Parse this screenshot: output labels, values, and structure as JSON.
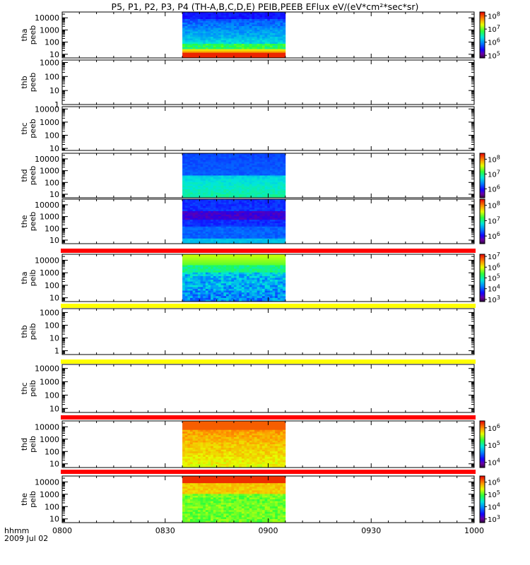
{
  "title": "P5, P1, P2, P3, P4 (TH-A,B,C,D,E) PEIB,PEEB EFlux eV/(eV*cm²*sec*sr)",
  "time_axis": {
    "label": "hhmm",
    "date": "2009 Jul 02",
    "ticks": [
      "0800",
      "0830",
      "0900",
      "0930",
      "1000"
    ]
  },
  "chart_data": {
    "type": "heatmap",
    "x_range_minutes": [
      0,
      120
    ],
    "data_window_minutes": [
      35,
      65
    ],
    "panels": [
      {
        "name": "thaPEEB",
        "probe": "tha",
        "product": "peeb",
        "ylim": [
          5,
          30000
        ],
        "yscale": "log",
        "yticks": [
          "10",
          "100",
          "1000",
          "10000"
        ],
        "has_data": true,
        "palette": "peeb_a",
        "colorbar": {
          "exponents": [
            "5",
            "6",
            "7",
            "8"
          ],
          "range_log10": [
            4.8,
            8.3
          ]
        }
      },
      {
        "name": "thbPEEB",
        "probe": "thb",
        "product": "peeb",
        "ylim": [
          1,
          1500
        ],
        "yscale": "log",
        "yticks": [
          "1",
          "10",
          "100",
          "1000"
        ],
        "has_data": false
      },
      {
        "name": "thcPEEB",
        "probe": "thc",
        "product": "peeb",
        "ylim": [
          7,
          15000
        ],
        "yscale": "log",
        "yticks": [
          "10",
          "100",
          "1000",
          "10000"
        ],
        "has_data": false
      },
      {
        "name": "thdPEEB",
        "probe": "thd",
        "product": "peeb",
        "ylim": [
          5,
          30000
        ],
        "yscale": "log",
        "yticks": [
          "10",
          "100",
          "1000",
          "10000"
        ],
        "has_data": true,
        "palette": "peeb_d",
        "colorbar": {
          "exponents": [
            "6",
            "7",
            "8"
          ],
          "range_log10": [
            5.4,
            8.4
          ]
        }
      },
      {
        "name": "thePEEB",
        "probe": "the",
        "product": "peeb",
        "ylim": [
          5,
          30000
        ],
        "yscale": "log",
        "yticks": [
          "10",
          "100",
          "1000",
          "10000"
        ],
        "has_data": true,
        "palette": "peeb_e",
        "colorbar": {
          "exponents": [
            "6",
            "7",
            "8"
          ],
          "range_log10": [
            5.5,
            8.4
          ]
        }
      },
      {
        "name": "thaPEIB",
        "probe": "tha",
        "product": "peib",
        "ylim": [
          5,
          30000
        ],
        "yscale": "log",
        "yticks": [
          "10",
          "100",
          "1000",
          "10000"
        ],
        "has_data": true,
        "palette": "peib_a",
        "bar_above": "red",
        "colorbar": {
          "exponents": [
            "3",
            "4",
            "5",
            "6",
            "7"
          ],
          "range_log10": [
            2.8,
            7.2
          ]
        }
      },
      {
        "name": "thbPEIB",
        "probe": "thb",
        "product": "peib",
        "ylim": [
          0.5,
          2000
        ],
        "yscale": "log",
        "yticks": [
          "1",
          "10",
          "100",
          "1000"
        ],
        "has_data": false,
        "bar_above": "yellow"
      },
      {
        "name": "thcPEIB",
        "probe": "thc",
        "product": "peib",
        "ylim": [
          5,
          20000
        ],
        "yscale": "log",
        "yticks": [
          "10",
          "100",
          "1000",
          "10000"
        ],
        "has_data": false,
        "bar_above": "yellow"
      },
      {
        "name": "thdPEIB",
        "probe": "thd",
        "product": "peib",
        "ylim": [
          5,
          30000
        ],
        "yscale": "log",
        "yticks": [
          "10",
          "100",
          "1000",
          "10000"
        ],
        "has_data": true,
        "palette": "peib_d",
        "bar_above": "red",
        "colorbar": {
          "exponents": [
            "4",
            "5",
            "6"
          ],
          "range_log10": [
            3.7,
            6.4
          ]
        }
      },
      {
        "name": "thePEIB",
        "probe": "the",
        "product": "peib",
        "ylim": [
          5,
          30000
        ],
        "yscale": "log",
        "yticks": [
          "10",
          "100",
          "1000",
          "10000"
        ],
        "has_data": true,
        "palette": "peib_e",
        "bar_above": "red",
        "colorbar": {
          "exponents": [
            "3",
            "4",
            "5",
            "6"
          ],
          "range_log10": [
            2.7,
            6.5
          ]
        }
      }
    ]
  }
}
